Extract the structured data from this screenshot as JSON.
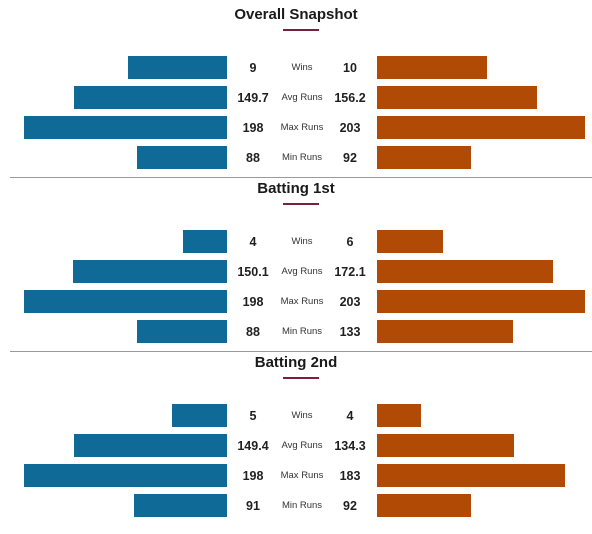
{
  "chart_data": {
    "type": "bar",
    "colors": {
      "left": "#0f6a97",
      "right": "#b04a04",
      "accent": "#7a1f3d"
    },
    "sections": [
      {
        "title": "Overall Snapshot",
        "rows": [
          {
            "metric": "Wins",
            "left": 9,
            "right": 10
          },
          {
            "metric": "Avg Runs",
            "left": 149.7,
            "right": 156.2
          },
          {
            "metric": "Max Runs",
            "left": 198,
            "right": 203
          },
          {
            "metric": "Min Runs",
            "left": 88,
            "right": 92
          }
        ]
      },
      {
        "title": "Batting 1st",
        "rows": [
          {
            "metric": "Wins",
            "left": 4,
            "right": 6
          },
          {
            "metric": "Avg Runs",
            "left": 150.1,
            "right": 172.1
          },
          {
            "metric": "Max Runs",
            "left": 198,
            "right": 203
          },
          {
            "metric": "Min Runs",
            "left": 88,
            "right": 133
          }
        ]
      },
      {
        "title": "Batting 2nd",
        "rows": [
          {
            "metric": "Wins",
            "left": 5,
            "right": 4
          },
          {
            "metric": "Avg Runs",
            "left": 149.4,
            "right": 134.3
          },
          {
            "metric": "Max Runs",
            "left": 198,
            "right": 183
          },
          {
            "metric": "Min Runs",
            "left": 91,
            "right": 92
          }
        ]
      }
    ]
  }
}
